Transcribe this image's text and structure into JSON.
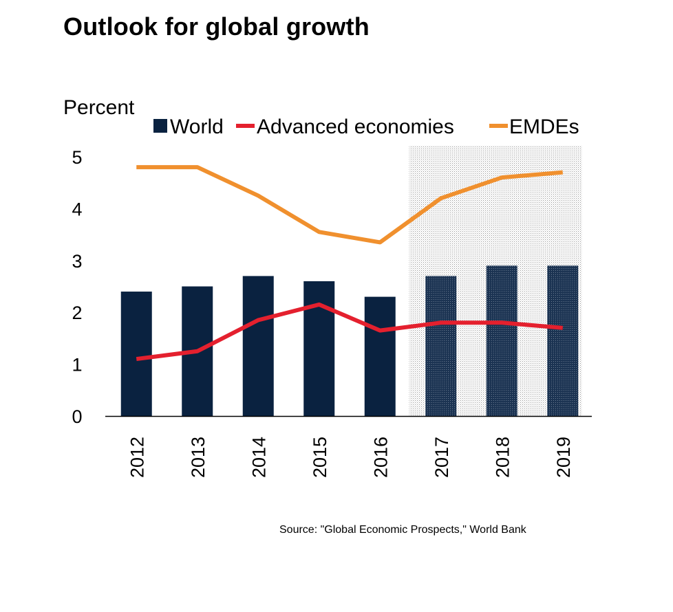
{
  "page": {
    "title": "Outlook for global growth",
    "source": "Source: \"Global Economic Prospects,\" World Bank"
  },
  "chart_data": {
    "type": "bar",
    "title": "Outlook for global growth",
    "ylabel": "Percent",
    "xlabel": "",
    "ylim": [
      0,
      5
    ],
    "yticks": [
      0,
      1,
      2,
      3,
      4,
      5
    ],
    "categories": [
      "2012",
      "2013",
      "2014",
      "2015",
      "2016",
      "2017",
      "2018",
      "2019"
    ],
    "forecast_categories": [
      "2017",
      "2018",
      "2019"
    ],
    "legend_position": "top",
    "grid": false,
    "series": [
      {
        "name": "World",
        "kind": "bar",
        "color": "#0a2240",
        "values": [
          2.4,
          2.5,
          2.7,
          2.6,
          2.3,
          2.7,
          2.9,
          2.9
        ]
      },
      {
        "name": "Advanced economies",
        "kind": "line",
        "color": "#e4202e",
        "values": [
          1.1,
          1.25,
          1.85,
          2.15,
          1.65,
          1.8,
          1.8,
          1.7
        ]
      },
      {
        "name": "EMDEs",
        "kind": "line",
        "color": "#f0902e",
        "values": [
          4.8,
          4.8,
          4.25,
          3.55,
          3.35,
          4.2,
          4.6,
          4.7
        ]
      }
    ]
  }
}
